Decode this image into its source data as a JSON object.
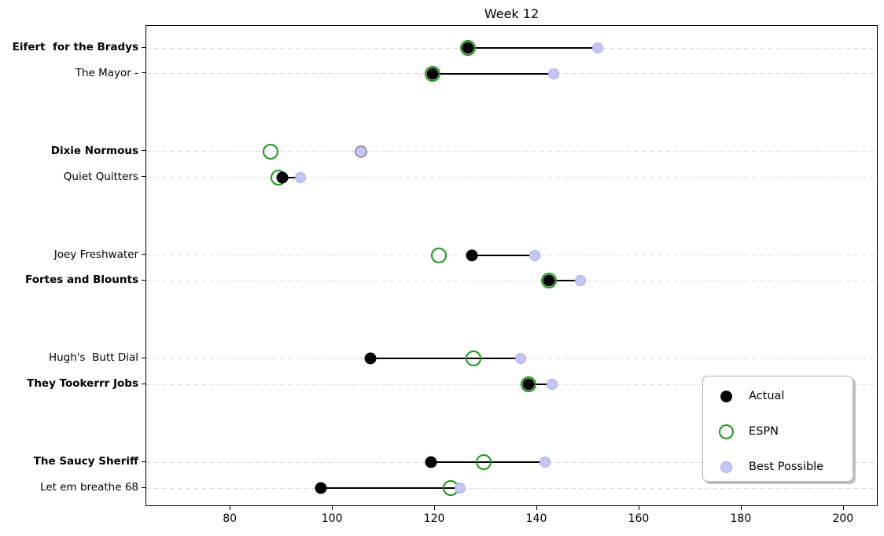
{
  "title": "Week 12",
  "colors": {
    "actual": "#000000",
    "espn": "#1e961e",
    "best_fill": "#c6c6f4",
    "best_edge": "#a9a9e8",
    "grid": "#dcdcdc",
    "spine": "#000000"
  },
  "legend": {
    "items": [
      {
        "label": "Actual",
        "marker": "filled-black-circle"
      },
      {
        "label": "ESPN",
        "marker": "open-green-circle"
      },
      {
        "label": "Best Possible",
        "marker": "filled-lavender-circle"
      }
    ]
  },
  "chart_data": {
    "type": "scatter",
    "variant": "dumbbell-dot-plot",
    "title": "Week 12",
    "xlabel": "",
    "ylabel": "",
    "x_ticks": [
      80,
      100,
      120,
      140,
      160,
      180,
      200
    ],
    "xlim": [
      63.5,
      206.8
    ],
    "slot_range": [
      -0.851,
      17.728
    ],
    "grid": "horizontal-dashed",
    "legend_position": "lower-right",
    "series_names": [
      "Actual",
      "ESPN",
      "Best Possible"
    ],
    "teams": [
      {
        "name": "Eifert  for the Bradys",
        "bold": true,
        "slot": 0,
        "actual": 126.5,
        "espn": 126.5,
        "best": 151.8
      },
      {
        "name": "The Mayor -",
        "bold": false,
        "slot": 1,
        "actual": 119.5,
        "espn": 119.5,
        "best": 143.3
      },
      {
        "name": "Dixie Normous",
        "bold": true,
        "slot": 4,
        "actual": 105.5,
        "espn": 87.8,
        "best": 105.5
      },
      {
        "name": "Quiet Quitters",
        "bold": false,
        "slot": 5,
        "actual": 90.2,
        "espn": 89.4,
        "best": 93.6
      },
      {
        "name": "Joey Freshwater",
        "bold": false,
        "slot": 8,
        "actual": 127.2,
        "espn": 120.7,
        "best": 139.6
      },
      {
        "name": "Fortes and Blounts",
        "bold": true,
        "slot": 9,
        "actual": 142.3,
        "espn": 142.3,
        "best": 148.4
      },
      {
        "name": "Hugh's  Butt Dial",
        "bold": false,
        "slot": 12,
        "actual": 107.4,
        "espn": 127.6,
        "best": 136.7
      },
      {
        "name": "They Tookerrr Jobs",
        "bold": true,
        "slot": 13,
        "actual": 138.3,
        "espn": 138.3,
        "best": 142.9
      },
      {
        "name": "The Saucy Sheriff",
        "bold": true,
        "slot": 16,
        "actual": 119.2,
        "espn": 129.6,
        "best": 141.5
      },
      {
        "name": "Let em breathe 68",
        "bold": false,
        "slot": 17,
        "actual": 97.6,
        "espn": 123.0,
        "best": 124.9
      }
    ]
  }
}
